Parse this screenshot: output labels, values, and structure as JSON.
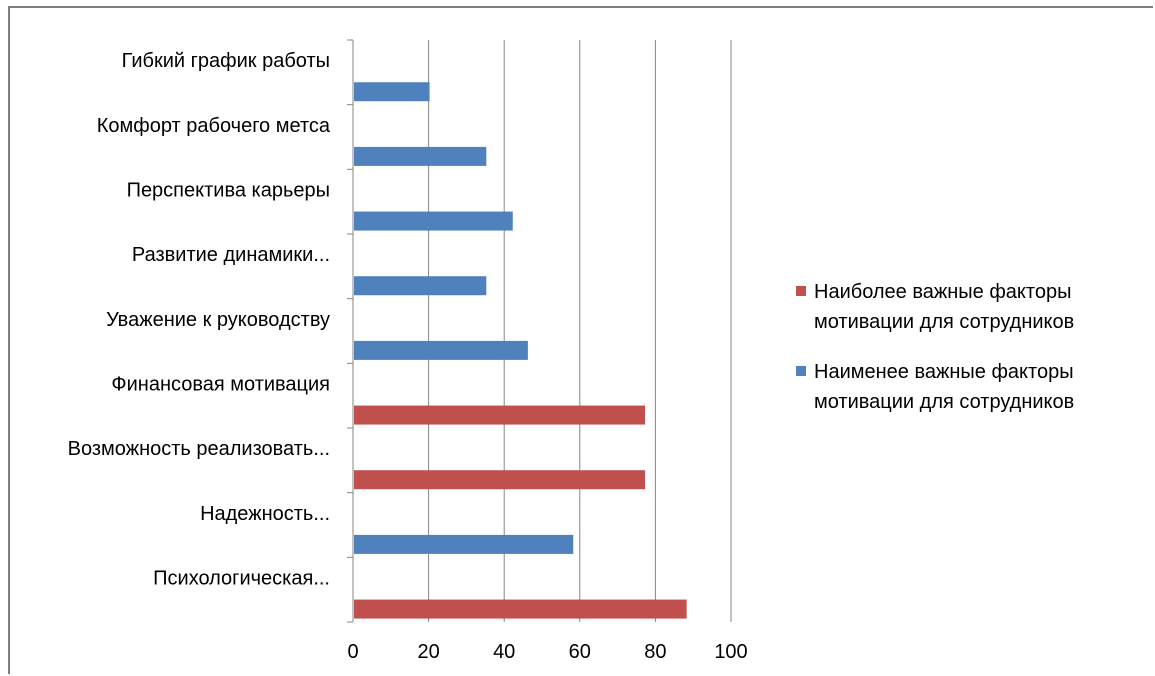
{
  "chart_data": {
    "type": "bar",
    "orientation": "horizontal",
    "categories": [
      "Психологическая...",
      "Надежность...",
      "Возможность реализовать...",
      "Финансовая мотивация",
      "Уважение к руководству",
      "Развитие динамики...",
      "Перспектива карьеры",
      "Комфорт рабочего метса",
      "Гибкий график работы"
    ],
    "series": [
      {
        "name": "Наиболее важные факторы мотивации для сотрудников",
        "color": "#c0504d",
        "values": [
          88,
          null,
          77,
          77,
          null,
          null,
          null,
          null,
          null
        ]
      },
      {
        "name": "Наименее важные факторы мотивации для сотрудников",
        "color": "#4f81bd",
        "values": [
          null,
          58,
          null,
          null,
          46,
          35,
          42,
          35,
          20
        ]
      }
    ],
    "xlim": [
      0,
      100
    ],
    "xticks": [
      "0",
      "20",
      "40",
      "60",
      "80",
      "100"
    ],
    "grid": true,
    "legend": "right"
  }
}
